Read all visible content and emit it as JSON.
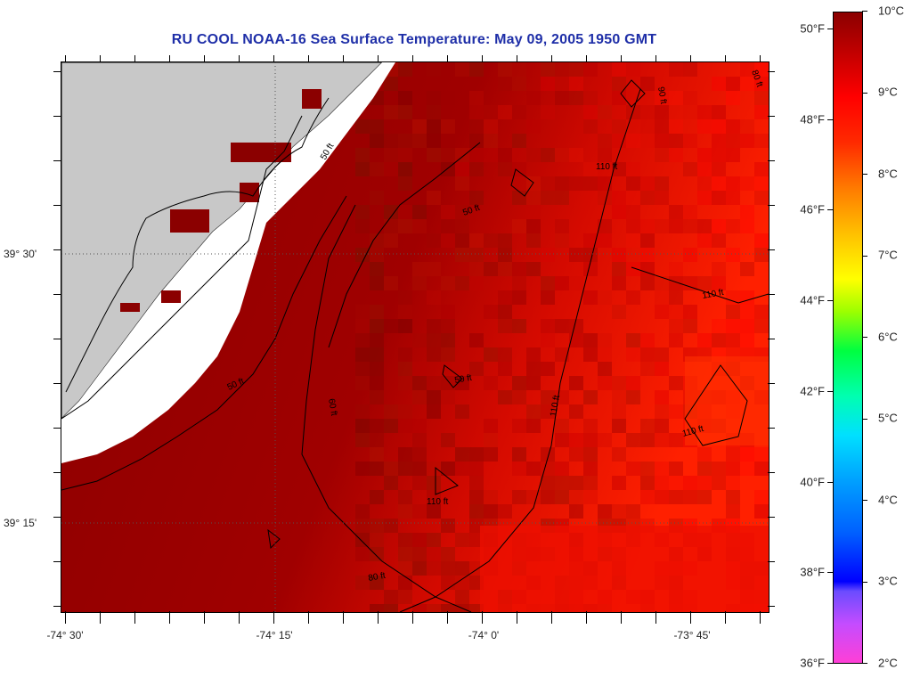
{
  "title": "RU COOL  NOAA-16  Sea Surface Temperature:  May 09, 2005 1950 GMT",
  "map": {
    "longitude_labels": [
      "-74° 30'",
      "-74° 15'",
      "-74° 0'",
      "-73° 45'"
    ],
    "latitude_labels": [
      "39° 30'",
      "39° 15'"
    ],
    "contour_labels": [
      "90 ft",
      "50 ft",
      "50 ft",
      "80 ft",
      "110 ft",
      "50 ft",
      "60 ft",
      "50 ft",
      "110 ft",
      "110 ft",
      "110 ft",
      "80 ft",
      "110 ft"
    ],
    "colors": {
      "land": "#c8c8c8",
      "cloud": "#ffffff",
      "sst_cold": "#8b0000",
      "sst_warm": "#ff1a00"
    }
  },
  "colorbar": {
    "fahrenheit_labels": [
      "50°F",
      "48°F",
      "46°F",
      "44°F",
      "42°F",
      "40°F",
      "38°F",
      "36°F"
    ],
    "celsius_labels": [
      "10°C",
      "9°C",
      "8°C",
      "7°C",
      "6°C",
      "5°C",
      "4°C",
      "3°C",
      "2°C"
    ],
    "range_celsius": [
      2,
      10
    ]
  }
}
